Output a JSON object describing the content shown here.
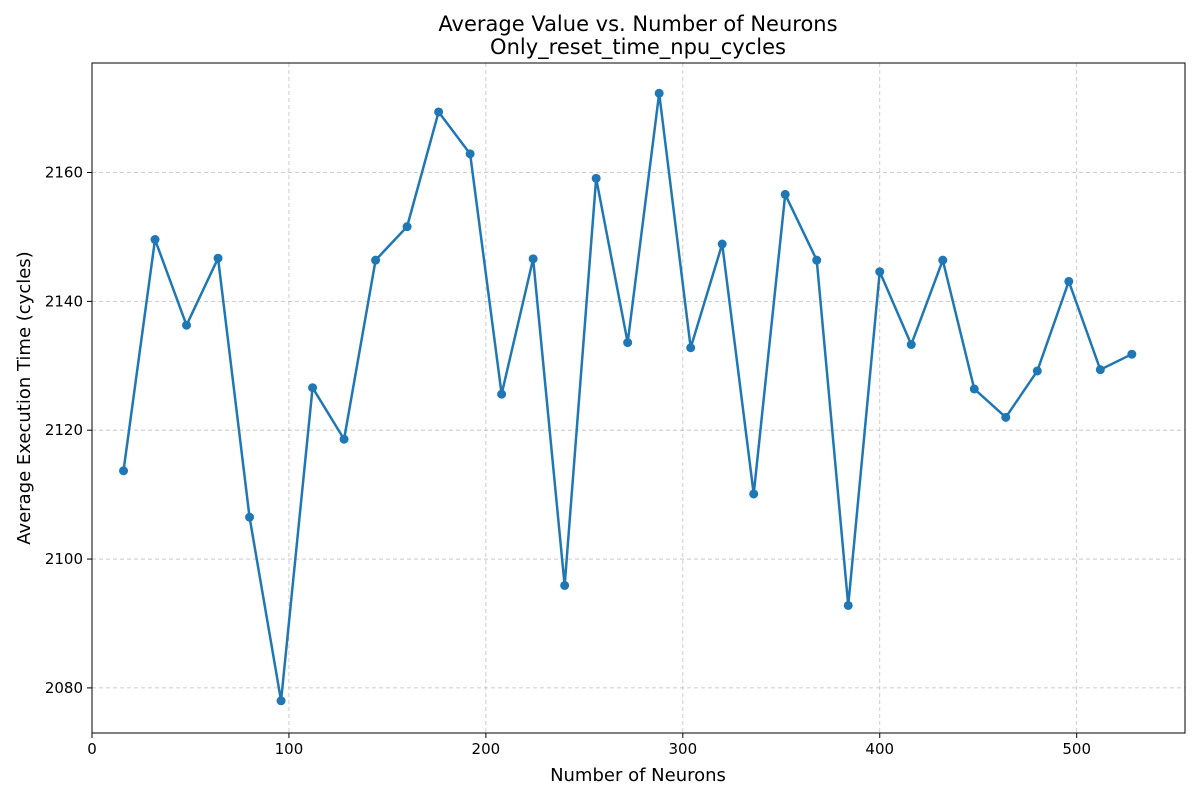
{
  "chart_data": {
    "type": "line",
    "title": "Average Value vs. Number of Neurons",
    "subtitle": "Only_reset_time_npu_cycles",
    "xlabel": "Number of Neurons",
    "ylabel": "Average Execution Time (cycles)",
    "xlim": [
      0,
      555
    ],
    "ylim": [
      2073,
      2177
    ],
    "xticks": [
      0,
      100,
      200,
      300,
      400,
      500
    ],
    "yticks": [
      2080,
      2100,
      2120,
      2140,
      2160
    ],
    "grid": true,
    "legend": "none",
    "series_color": "#1f77b4",
    "marker": "circle",
    "x": [
      16,
      32,
      48,
      64,
      80,
      96,
      112,
      128,
      144,
      160,
      176,
      192,
      208,
      224,
      240,
      256,
      272,
      288,
      304,
      320,
      336,
      352,
      368,
      384,
      400,
      416,
      432,
      448,
      464,
      480,
      496,
      512,
      528
    ],
    "series": [
      {
        "values": [
          2113.7,
          2149.6,
          2136.3,
          2146.7,
          2106.5,
          2078.0,
          2126.6,
          2118.6,
          2146.4,
          2151.6,
          2169.4,
          2162.9,
          2125.6,
          2146.6,
          2095.9,
          2159.1,
          2133.6,
          2172.3,
          2132.8,
          2148.9,
          2110.1,
          2156.6,
          2146.4,
          2092.8,
          2144.6,
          2133.3,
          2146.4,
          2126.4,
          2122.0,
          2129.2,
          2143.1,
          2129.4,
          2131.8
        ]
      }
    ]
  }
}
